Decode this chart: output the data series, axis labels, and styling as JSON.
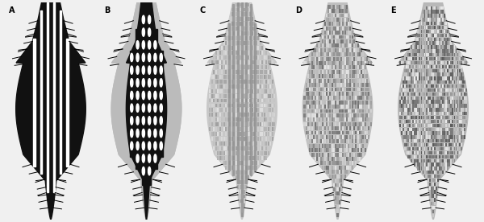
{
  "panels": [
    "A",
    "B",
    "C",
    "D",
    "E"
  ],
  "background_color": "#f0f0f0",
  "white": "#ffffff",
  "black": "#111111",
  "light_gray": "#c8c8c8",
  "med_gray": "#aaaaaa",
  "dark_gray": "#777777",
  "dot_gray": "#888888"
}
